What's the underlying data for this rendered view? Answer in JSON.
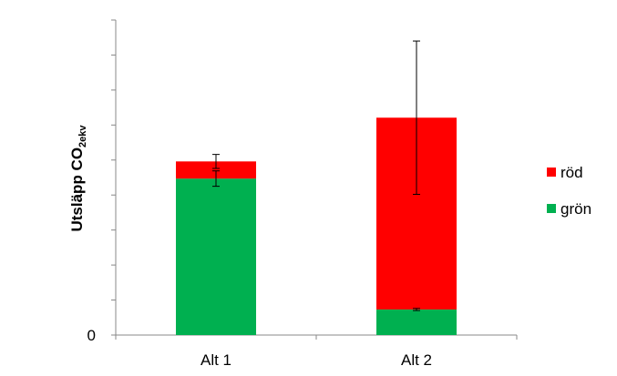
{
  "chart_data": {
    "type": "bar",
    "stacked": true,
    "y_label": {
      "text": "Utsläpp CO",
      "subscript": "2ekv"
    },
    "categories": [
      "Alt 1",
      "Alt 2"
    ],
    "series": [
      {
        "name": "grön",
        "color": "#00b050",
        "values": [
          4.47,
          0.73
        ],
        "errors": [
          0.22,
          0.03
        ]
      },
      {
        "name": "röd",
        "color": "#ff0000",
        "values": [
          0.49,
          5.48
        ],
        "errors": [
          0.2,
          2.19
        ]
      }
    ],
    "ylim": [
      0,
      9
    ],
    "yticks": [
      0,
      {
        "value": 1,
        "label": null
      },
      {
        "value": 2,
        "label": null
      },
      {
        "value": 3,
        "label": null
      },
      {
        "value": 4,
        "label": null
      },
      {
        "value": 5,
        "label": null
      },
      {
        "value": 6,
        "label": null
      },
      {
        "value": 7,
        "label": null
      },
      {
        "value": 8,
        "label": null
      },
      {
        "value": 9,
        "label": null
      }
    ],
    "legend": "right"
  }
}
